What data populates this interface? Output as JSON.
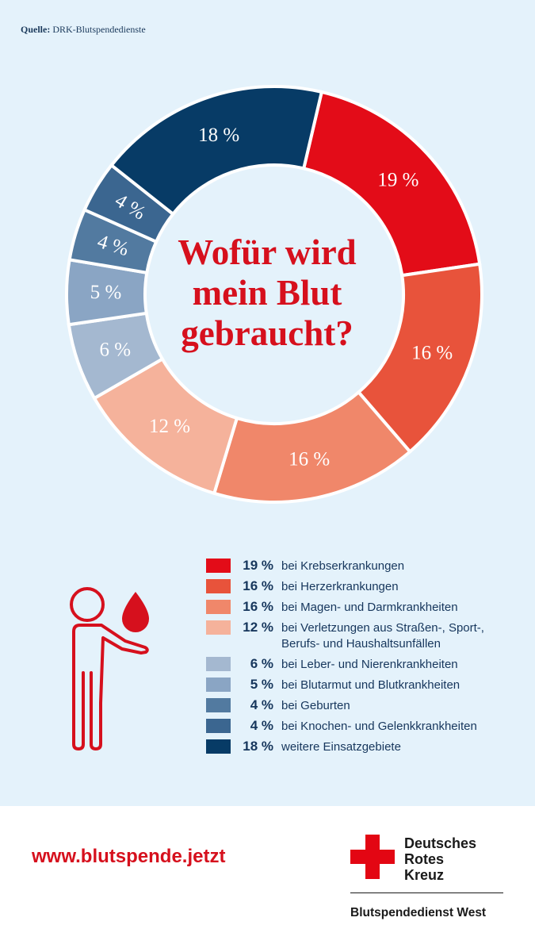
{
  "source": {
    "label": "Quelle:",
    "text": "DRK-Blutspendedienste"
  },
  "title_lines": [
    "Wofür wird",
    "mein Blut",
    "gebraucht?"
  ],
  "chart_data": {
    "type": "pie",
    "title": "Wofür wird mein Blut gebraucht?",
    "unit": "%",
    "slices": [
      {
        "value": 19,
        "label": "19 %",
        "legend_pct": "19 %",
        "legend_text": "bei Krebserkrankungen",
        "color": "#e30c18"
      },
      {
        "value": 16,
        "label": "16 %",
        "legend_pct": "16 %",
        "legend_text": "bei Herzerkrankungen",
        "color": "#e8533b"
      },
      {
        "value": 16,
        "label": "16 %",
        "legend_pct": "16 %",
        "legend_text": "bei Magen- und Darmkrankheiten",
        "color": "#f0876a"
      },
      {
        "value": 12,
        "label": "12 %",
        "legend_pct": "12 %",
        "legend_text": "bei Verletzungen aus Straßen-, Sport-, Berufs- und Haushaltsunfällen",
        "color": "#f5b29b"
      },
      {
        "value": 6,
        "label": "6 %",
        "legend_pct": "6 %",
        "legend_text": "bei Leber- und Nierenkrankheiten",
        "color": "#a4b8d0"
      },
      {
        "value": 5,
        "label": "5 %",
        "legend_pct": "5 %",
        "legend_text": "bei Blutarmut und Blutkrankheiten",
        "color": "#8aa5c4"
      },
      {
        "value": 4,
        "label": "4 %",
        "legend_pct": "4 %",
        "legend_text": "bei Geburten",
        "color": "#527aa0"
      },
      {
        "value": 4,
        "label": "4 %",
        "legend_pct": "4 %",
        "legend_text": "bei Knochen- und Gelenkkrankheiten",
        "color": "#3b6690"
      },
      {
        "value": 18,
        "label": "18 %",
        "legend_pct": "18 %",
        "legend_text": "weitere Einsatzgebiete",
        "color": "#073b66"
      }
    ]
  },
  "footer": {
    "url": "www.blutspende.jetzt",
    "org_lines": [
      "Deutsches",
      "Rotes",
      "Kreuz"
    ],
    "service": "Blutspendedienst West",
    "brand_red": "#e30613"
  },
  "icons": {
    "person": "donor-person-icon",
    "drop": "blood-drop-icon",
    "cross": "red-cross-logo-icon"
  }
}
